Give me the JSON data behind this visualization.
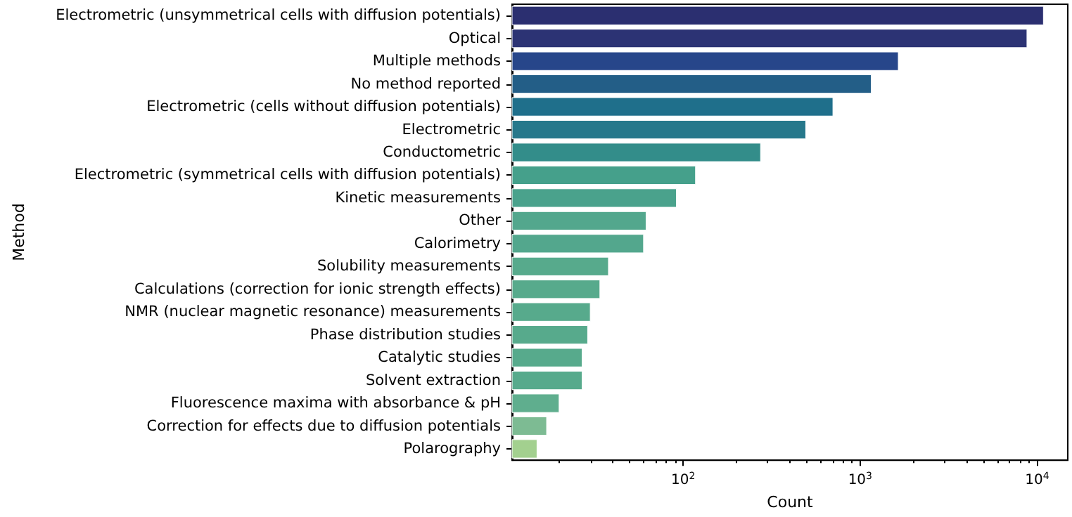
{
  "chart_data": {
    "type": "bar",
    "orientation": "horizontal",
    "log": "x",
    "xlabel": "Count",
    "ylabel": "Method",
    "categories": [
      "Electrometric (unsymmetrical cells with diffusion potentials)",
      "Optical",
      "Multiple methods",
      "No method reported",
      "Electrometric (cells without diffusion potentials)",
      "Electrometric",
      "Conductometric",
      "Electrometric (symmetrical cells with diffusion potentials)",
      "Kinetic measurements",
      "Other",
      "Calorimetry",
      "Solubility measurements",
      "Calculations (correction for ionic strength effects)",
      "NMR (nuclear magnetic resonance) measurements",
      "Phase distribution studies",
      "Catalytic studies",
      "Solvent extraction",
      "Fluorescence maxima with absorbance & pH",
      "Correction for effects due to diffusion potentials",
      "Polarography"
    ],
    "values": [
      10900,
      8800,
      1650,
      1160,
      705,
      495,
      275,
      118,
      92,
      62,
      60,
      38,
      34,
      30,
      29,
      27,
      27,
      20,
      17,
      15
    ],
    "colors": [
      "#2b2f70",
      "#2c3374",
      "#27468a",
      "#235e87",
      "#1f6f8b",
      "#26788b",
      "#338d8a",
      "#45a08b",
      "#4aa28c",
      "#53a78d",
      "#53a78d",
      "#57aa8c",
      "#57aa8c",
      "#57aa8c",
      "#57aa8c",
      "#57aa8c",
      "#57aa8c",
      "#5fae8e",
      "#7dbb93",
      "#a3d08f"
    ],
    "xlim": [
      10.8,
      14900
    ],
    "xticks": [
      {
        "value": 100,
        "label": "10$^{2}$"
      },
      {
        "value": 1000,
        "label": "10$^{3}$"
      },
      {
        "value": 10000,
        "label": "10$^{4}$"
      }
    ],
    "grid": false
  }
}
